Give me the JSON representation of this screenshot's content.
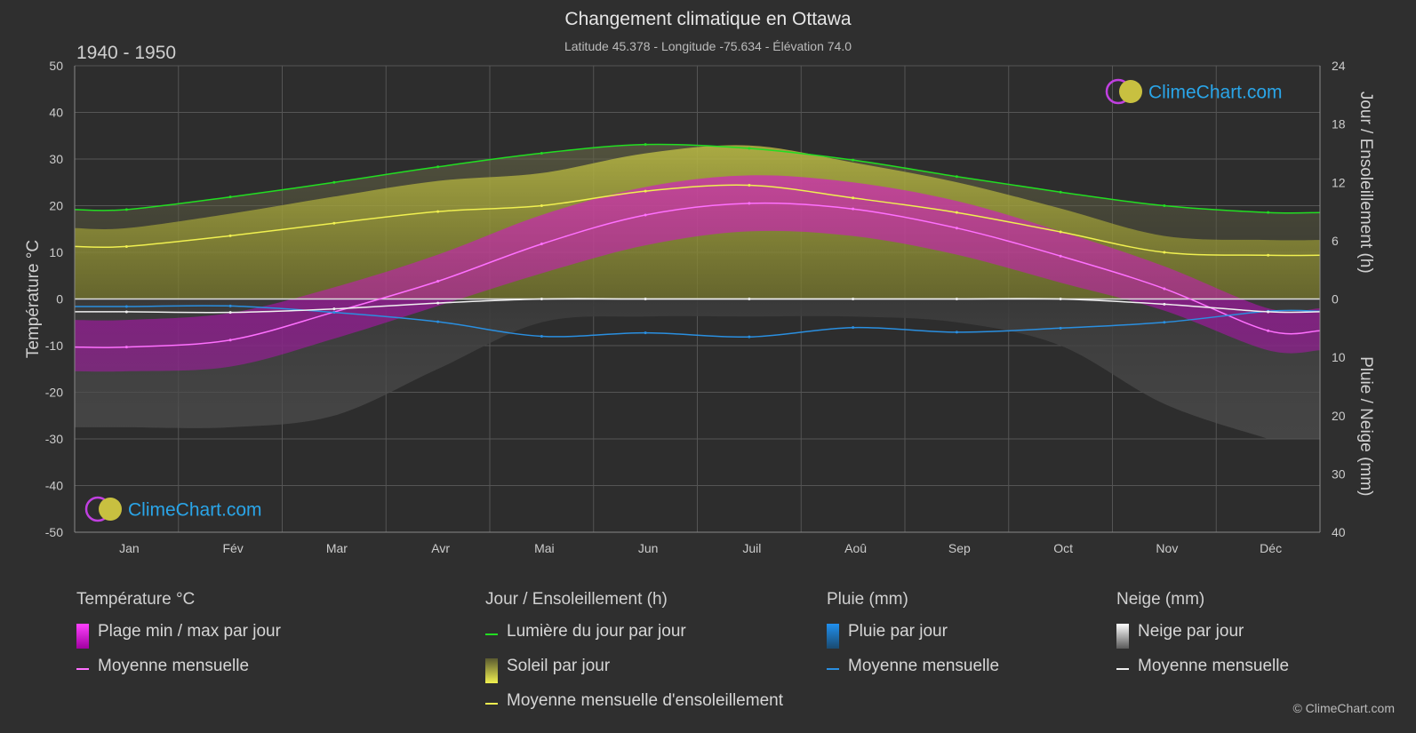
{
  "header": {
    "title": "Changement climatique en Ottawa",
    "subtitle": "Latitude 45.378 - Longitude -75.634 - Élévation 74.0",
    "period": "1940 - 1950"
  },
  "brand": {
    "name": "ClimeChart.com",
    "copyright": "© ClimeChart.com"
  },
  "colors": {
    "background": "#2f2f2f",
    "grid": "#555555",
    "temp_range": "#e000e0",
    "temp_mean": "#ff70ff",
    "daylight": "#22dd22",
    "sunshine": "#b8b83a",
    "sunshine_mean": "#f0f050",
    "rain": "#1f7fd0",
    "rain_mean": "#2a8fe0",
    "snow": "#9a9a9a",
    "snow_mean": "#f0f0f0",
    "brand": "#2aa5e8"
  },
  "chart_data": {
    "type": "line",
    "categories": [
      "Jan",
      "Fév",
      "Mar",
      "Avr",
      "Mai",
      "Jun",
      "Juil",
      "Aoû",
      "Sep",
      "Oct",
      "Nov",
      "Déc"
    ],
    "ylabel_left": "Température °C",
    "ylabel_right_top": "Jour / Ensoleillement (h)",
    "ylabel_right_bottom": "Pluie / Neige (mm)",
    "left_axis": {
      "min": -50,
      "max": 50,
      "ticks": [
        50,
        40,
        30,
        20,
        10,
        0,
        -10,
        -20,
        -30,
        -40,
        -50
      ]
    },
    "right_top_axis": {
      "min": 0,
      "max": 24,
      "ticks": [
        24,
        18,
        12,
        6,
        0
      ]
    },
    "right_bottom_axis": {
      "min": 0,
      "max": 40,
      "ticks": [
        10,
        20,
        30,
        40
      ]
    },
    "grid": true,
    "series": [
      {
        "name": "Lumière du jour par jour",
        "axis": "hours",
        "values": [
          9.2,
          10.5,
          12.0,
          13.6,
          15.0,
          15.9,
          15.5,
          14.3,
          12.6,
          11.0,
          9.6,
          8.9
        ]
      },
      {
        "name": "Moyenne mensuelle d'ensoleillement",
        "axis": "hours",
        "values": [
          5.4,
          6.5,
          7.8,
          9.0,
          9.6,
          11.1,
          11.7,
          10.4,
          8.9,
          6.9,
          4.8,
          4.5
        ]
      },
      {
        "name": "Moyenne mensuelle",
        "group": "Température °C",
        "axis": "temperature",
        "values": [
          -10.3,
          -8.8,
          -2.8,
          3.8,
          11.8,
          18.0,
          20.5,
          19.3,
          15.2,
          9.2,
          2.2,
          -6.8
        ]
      },
      {
        "name": "Plage min / max par jour",
        "axis": "temperature",
        "min": [
          -15.5,
          -14.5,
          -8.5,
          -1.5,
          5.5,
          11.5,
          14.5,
          13.5,
          9.5,
          3.5,
          -2.5,
          -11.0
        ],
        "max": [
          -4.5,
          -3.0,
          2.5,
          9.5,
          18.0,
          24.0,
          26.5,
          25.0,
          21.0,
          14.5,
          7.0,
          -2.0
        ]
      },
      {
        "name": "Moyenne mensuelle",
        "group": "Pluie (mm)",
        "axis": "precip",
        "values": [
          1.3,
          1.2,
          2.3,
          3.9,
          6.4,
          5.8,
          6.5,
          4.9,
          5.7,
          5.0,
          4.0,
          2.1
        ]
      },
      {
        "name": "Moyenne mensuelle",
        "group": "Neige (mm)",
        "axis": "precip",
        "values": [
          2.2,
          2.3,
          1.7,
          0.7,
          0.0,
          0.0,
          0.0,
          0.0,
          0.0,
          0.0,
          0.9,
          2.2
        ]
      }
    ]
  },
  "legend": {
    "temp": {
      "title": "Température °C",
      "items": [
        "Plage min / max par jour",
        "Moyenne mensuelle"
      ]
    },
    "sun": {
      "title": "Jour / Ensoleillement (h)",
      "items": [
        "Lumière du jour par jour",
        "Soleil par jour",
        "Moyenne mensuelle d'ensoleillement"
      ]
    },
    "rain": {
      "title": "Pluie (mm)",
      "items": [
        "Pluie par jour",
        "Moyenne mensuelle"
      ]
    },
    "snow": {
      "title": "Neige (mm)",
      "items": [
        "Neige par jour",
        "Moyenne mensuelle"
      ]
    }
  }
}
